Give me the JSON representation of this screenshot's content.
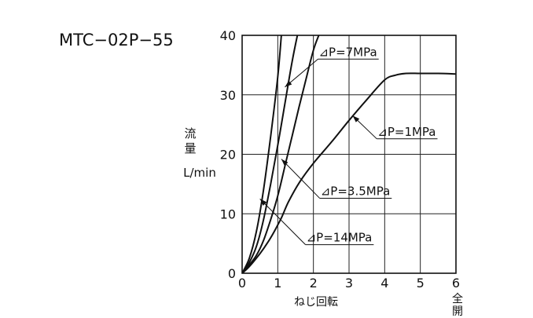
{
  "chart_data": {
    "type": "line",
    "title": "MTC−02P−55",
    "ylabel_chars": [
      "流",
      "量"
    ],
    "ylabel_unit": "L/min",
    "xlabel": "ねじ回転",
    "xlim": [
      0,
      6
    ],
    "ylim": [
      0,
      40
    ],
    "xticks": [
      "0",
      "1",
      "2",
      "3",
      "4",
      "5",
      "6"
    ],
    "x_end_label_chars": [
      "全",
      "開"
    ],
    "yticks": [
      "0",
      "10",
      "20",
      "30",
      "40"
    ],
    "grid": true,
    "series": [
      {
        "name": "⊿P=1MPa",
        "x": [
          0,
          0.15,
          0.3,
          0.5,
          0.7,
          0.9,
          1.1,
          1.3,
          1.6,
          2.0,
          2.5,
          3.0,
          3.5,
          4.0,
          4.3,
          4.6,
          5.0,
          5.5,
          6.0
        ],
        "y": [
          0,
          0.8,
          1.8,
          3.3,
          5.0,
          7.0,
          9.3,
          12.0,
          15.2,
          18.5,
          22.0,
          25.7,
          29.2,
          32.5,
          33.3,
          33.6,
          33.6,
          33.6,
          33.5
        ]
      },
      {
        "name": "⊿P=3.5MPa",
        "x": [
          0,
          0.2,
          0.4,
          0.6,
          0.8,
          1.0,
          1.2,
          1.4,
          1.6,
          1.8,
          2.0,
          2.15
        ],
        "y": [
          0,
          1.4,
          3.0,
          5.5,
          9.0,
          13.0,
          18.0,
          23.0,
          28.0,
          32.8,
          37.5,
          40
        ]
      },
      {
        "name": "⊿P=7MPa",
        "x": [
          0,
          0.2,
          0.4,
          0.6,
          0.8,
          1.0,
          1.2,
          1.4,
          1.55
        ],
        "y": [
          0,
          1.8,
          4.5,
          9.0,
          15.0,
          21.5,
          28.5,
          35.5,
          40
        ]
      },
      {
        "name": "⊿P=14MPa",
        "x": [
          0,
          0.2,
          0.4,
          0.6,
          0.8,
          1.0,
          1.1
        ],
        "y": [
          0,
          2.5,
          7.0,
          14.0,
          23.0,
          33.0,
          40
        ]
      }
    ],
    "annotations": [
      {
        "text": "⊿P=7MPa",
        "series": "⊿P=7MPa",
        "point_x": 1.2,
        "point_y": 31.3,
        "label_x": 2.15,
        "label_y": 36.0
      },
      {
        "text": "⊿P=1MPa",
        "series": "⊿P=1MPa",
        "point_x": 3.1,
        "point_y": 26.5,
        "label_x": 3.8,
        "label_y": 22.6
      },
      {
        "text": "⊿P=3.5MPa",
        "series": "⊿P=3.5MPa",
        "point_x": 1.1,
        "point_y": 19.2,
        "label_x": 2.2,
        "label_y": 12.6
      },
      {
        "text": "⊿P=14MPa",
        "series": "⊿P=14MPa",
        "point_x": 0.5,
        "point_y": 12.5,
        "label_x": 1.8,
        "label_y": 4.8
      }
    ]
  }
}
